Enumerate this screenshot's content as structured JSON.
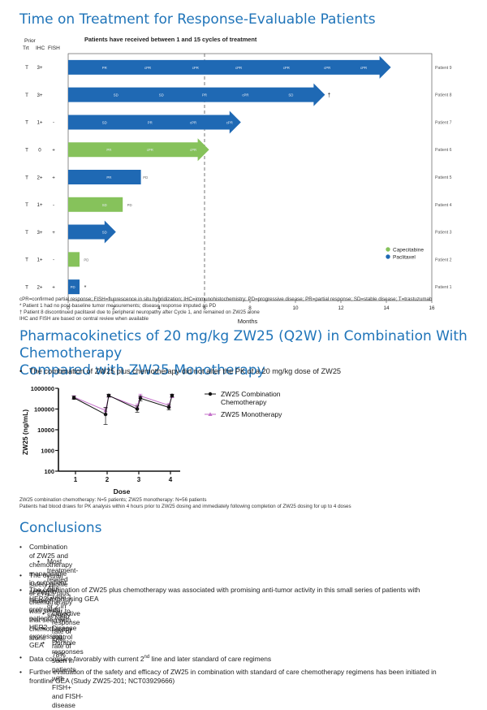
{
  "section1": {
    "title": "Time on Treatment for Response-Evaluable Patients",
    "subtitle": "Patients have received between 1 and 15 cycles of treatment",
    "col_headers": {
      "prior": "Prior",
      "trt": "Trt",
      "ihc": "IHC",
      "fish": "FISH"
    },
    "footnotes": [
      "cPR=confirmed partial response; FISH=fluorescence in situ hybridization; IHC=immunohistochemistry; PD=progressive disease; PR=partial response; SD=stable disease; T=trastuzumab",
      "* Patient 1 had no post-baseline tumor measurements; disease response imputed as PD",
      "† Patient 8 discontinued paclitaxel due to peripheral neuropathy after Cycle 1, and remained on ZW25 alone",
      "IHC and FISH are based on central review when available"
    ]
  },
  "section2": {
    "title_line1": "Pharmacokinetics of 20 mg/kg ZW25 (Q2W) in Combination With Chemotherapy",
    "title_line2": "Compared with ZW25 Monotherapy",
    "bullet": "The combination of ZW25 plus chemotherapy did not alter the PK of a 20 mg/kg dose of ZW25",
    "footnotes": [
      "ZW25 combination chemotherapy: N=5 patients; ZW25 monotherapy: N=56 patients",
      "Patients had blood draws for PK analysis within 4 hours prior to ZW25 dosing and immediately following completion of ZW25 dosing for up to 4 doses"
    ]
  },
  "section3": {
    "title": "Conclusions",
    "bullets": [
      {
        "level": 1,
        "text": "Combination of ZW25 and chemotherapy manageable in outpatient setting in heavily pretreated patients with HER2-expressing GEA"
      },
      {
        "level": 2,
        "text": "Most treatment-related AEs Grade 1 or 2 in severity"
      },
      {
        "level": 1,
        "text": "The overall safety profile of ZW25 plus chemotherapy was similar to that seen with chemotherapy alone"
      },
      {
        "level": 1,
        "text_line1": "The combination of ZW25 plus chemotherapy was associated with promising anti-tumor activity in this small series of patients with",
        "text_line2": "HER2-expressing GEA"
      },
      {
        "level": 2,
        "text": "Objective response rate of 56%"
      },
      {
        "level": 2,
        "text": "Disease control rate of 78%"
      },
      {
        "level": 2,
        "text": "Durable responses seen in patients with FISH+ and FISH- disease"
      },
      {
        "level": 1,
        "text_pre": "Data compare favorably with current 2",
        "text_sup": "nd",
        "text_post": " line and later standard of care regimens"
      },
      {
        "level": 1,
        "text_line1": "Further evaluation of the safety and efficacy of ZW25 in combination with standard of care chemotherapy regimens has been initiated in",
        "text_line2": "frontline GEA (Study ZW25-201; NCT03929666)"
      }
    ],
    "bullet_symbol": "•"
  },
  "colors": {
    "title_blue": "#1f74b9",
    "paclitaxel": "#1f69b4",
    "capecitabine": "#86c25b",
    "monotherapy": "#c36fc9",
    "combination": "#111111"
  },
  "chart_data": [
    {
      "type": "swimmer",
      "xlabel": "Months",
      "xlim": [
        0,
        16
      ],
      "xticks": [
        "0",
        "2",
        "4",
        "6",
        "8",
        "10",
        "12",
        "14",
        "16"
      ],
      "reference_line_x": 6,
      "legend": [
        {
          "name": "Capecitabine",
          "color": "#86c25b"
        },
        {
          "name": "Paclitaxel",
          "color": "#1f69b4"
        }
      ],
      "legend_position": "bottom-right",
      "patients": [
        {
          "label": "Patient 9",
          "trt": "T",
          "ihc": "3+",
          "fish": "",
          "chemo": "Paclitaxel",
          "months": 14.2,
          "ongoing": true,
          "responses": [
            {
              "m": 1.6,
              "t": "PR"
            },
            {
              "m": 3.5,
              "t": "cPR"
            },
            {
              "m": 5.6,
              "t": "cPR"
            },
            {
              "m": 7.5,
              "t": "cPR"
            },
            {
              "m": 9.6,
              "t": "cPR"
            },
            {
              "m": 11.4,
              "t": "cPR"
            },
            {
              "m": 13.0,
              "t": "cPR"
            }
          ],
          "marker": ""
        },
        {
          "label": "Patient 8",
          "trt": "T",
          "ihc": "3+",
          "fish": "",
          "chemo": "Paclitaxel",
          "months": 11.3,
          "ongoing": true,
          "responses": [
            {
              "m": 2.1,
              "t": "SD"
            },
            {
              "m": 4.1,
              "t": "SD"
            },
            {
              "m": 6.0,
              "t": "PR"
            },
            {
              "m": 7.8,
              "t": "cPR"
            },
            {
              "m": 9.8,
              "t": "SD"
            }
          ],
          "marker": "†"
        },
        {
          "label": "Patient 7",
          "trt": "T",
          "ihc": "1+",
          "fish": "-",
          "chemo": "Paclitaxel",
          "months": 7.6,
          "ongoing": true,
          "responses": [
            {
              "m": 1.6,
              "t": "SD"
            },
            {
              "m": 3.6,
              "t": "PR"
            },
            {
              "m": 5.5,
              "t": "cPR"
            },
            {
              "m": 7.1,
              "t": "cPR"
            }
          ],
          "marker": ""
        },
        {
          "label": "Patient 6",
          "trt": "T",
          "ihc": "0",
          "fish": "+",
          "chemo": "Capecitabine",
          "months": 6.2,
          "ongoing": true,
          "responses": [
            {
              "m": 1.8,
              "t": "PR"
            },
            {
              "m": 3.6,
              "t": "cPR"
            },
            {
              "m": 5.5,
              "t": "cPR"
            }
          ],
          "marker": ""
        },
        {
          "label": "Patient 5",
          "trt": "T",
          "ihc": "2+",
          "fish": "+",
          "chemo": "Paclitaxel",
          "months": 3.2,
          "ongoing": false,
          "responses": [
            {
              "m": 1.8,
              "t": "PR"
            },
            {
              "m": 3.4,
              "t": "PD"
            }
          ],
          "marker": ""
        },
        {
          "label": "Patient 4",
          "trt": "T",
          "ihc": "1+",
          "fish": "-",
          "chemo": "Capecitabine",
          "months": 2.4,
          "ongoing": false,
          "responses": [
            {
              "m": 1.6,
              "t": "SD"
            },
            {
              "m": 2.7,
              "t": "PD"
            }
          ],
          "marker": ""
        },
        {
          "label": "Patient 3",
          "trt": "T",
          "ihc": "3+",
          "fish": "+",
          "chemo": "Paclitaxel",
          "months": 2.1,
          "ongoing": true,
          "responses": [
            {
              "m": 1.6,
              "t": "SD"
            }
          ],
          "marker": ""
        },
        {
          "label": "Patient 2",
          "trt": "T",
          "ihc": "1+",
          "fish": "-",
          "chemo": "Capecitabine",
          "months": 0.5,
          "ongoing": false,
          "responses": [
            {
              "m": 0.8,
              "t": "PD"
            }
          ],
          "marker": ""
        },
        {
          "label": "Patient 1",
          "trt": "T",
          "ihc": "2+",
          "fish": "+",
          "chemo": "Paclitaxel",
          "months": 0.5,
          "ongoing": false,
          "responses": [
            {
              "m": 0.2,
              "t": "PD"
            }
          ],
          "marker": "*"
        }
      ]
    },
    {
      "type": "line",
      "xlabel": "Dose",
      "ylabel": "ZW25 (ng/mL)",
      "xticks": [
        "1",
        "2",
        "3",
        "4"
      ],
      "yscale": "log",
      "ylim": [
        100,
        1000000
      ],
      "yticks": [
        "100",
        "1000",
        "10000",
        "100000",
        "1000000"
      ],
      "legend_position": "right",
      "series": [
        {
          "name": "ZW25 Combination Chemotherapy",
          "name_line1": "ZW25 Combination",
          "name_line2": "Chemotherapy",
          "color": "#111111",
          "marker": "circle",
          "points": [
            {
              "x": 0.95,
              "y": 350000,
              "err": [
                290000,
                420000
              ]
            },
            {
              "x": 1.95,
              "y": 55000,
              "err": [
                18000,
                120000
              ]
            },
            {
              "x": 2.05,
              "y": 450000,
              "err": [
                380000,
                520000
              ]
            },
            {
              "x": 2.95,
              "y": 100000,
              "err": [
                70000,
                140000
              ]
            },
            {
              "x": 3.05,
              "y": 330000,
              "err": [
                250000,
                420000
              ]
            },
            {
              "x": 3.95,
              "y": 120000,
              "err": [
                90000,
                160000
              ]
            },
            {
              "x": 4.05,
              "y": 450000,
              "err": [
                380000,
                520000
              ]
            }
          ]
        },
        {
          "name": "ZW25 Monotherapy",
          "color": "#c36fc9",
          "marker": "triangle",
          "points": [
            {
              "x": 0.95,
              "y": 380000,
              "err": [
                320000,
                440000
              ]
            },
            {
              "x": 1.95,
              "y": 85000,
              "err": [
                60000,
                110000
              ]
            },
            {
              "x": 2.05,
              "y": 430000,
              "err": [
                370000,
                500000
              ]
            },
            {
              "x": 2.95,
              "y": 130000,
              "err": [
                100000,
                170000
              ]
            },
            {
              "x": 3.05,
              "y": 430000,
              "err": [
                360000,
                520000
              ]
            },
            {
              "x": 3.95,
              "y": 150000,
              "err": [
                120000,
                190000
              ]
            },
            {
              "x": 4.05,
              "y": 420000,
              "err": [
                350000,
                500000
              ]
            }
          ]
        }
      ]
    }
  ]
}
